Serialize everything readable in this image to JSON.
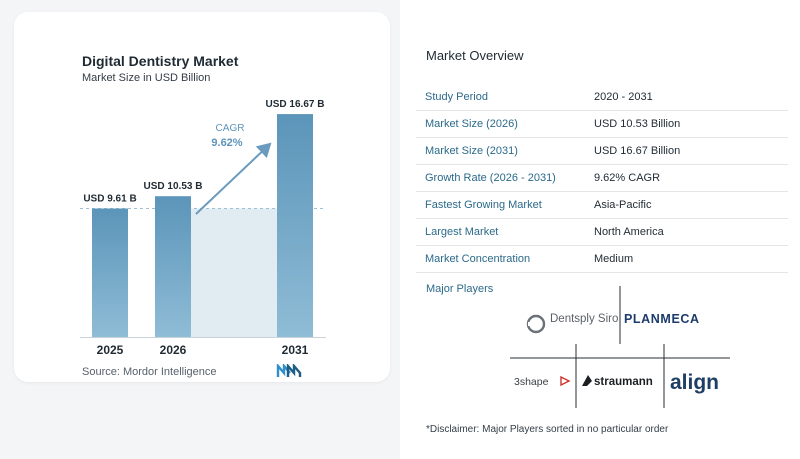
{
  "chart_data": {
    "type": "bar",
    "title": "Digital Dentistry Market",
    "subtitle": "Market Size in USD Billion",
    "categories": [
      "2025",
      "2026",
      "2031"
    ],
    "values": [
      9.61,
      10.53,
      16.67
    ],
    "data_labels": [
      "USD 9.61 B",
      "USD 10.53 B",
      "USD 16.67 B"
    ],
    "cagr_label": "CAGR",
    "cagr_value": "9.62%",
    "ylim": [
      0,
      17.5
    ],
    "colors": {
      "bar": "#5b95b9",
      "bar_light": "#8bb7d1",
      "shade": "#e1ebf2",
      "arrow": "#6a9bbf",
      "cagr": "#5d95bb"
    }
  },
  "source": "Source:  Mordor Intelligence",
  "overview": {
    "title": "Market Overview",
    "rows": [
      {
        "label": "Study Period",
        "value": "2020 - 2031"
      },
      {
        "label": "Market Size (2026)",
        "value": "USD 10.53 Billion"
      },
      {
        "label": "Market Size (2031)",
        "value": "USD 16.67 Billion"
      },
      {
        "label": "Growth Rate (2026 - 2031)",
        "value": "9.62% CAGR"
      },
      {
        "label": "Fastest Growing Market",
        "value": "Asia-Pacific"
      },
      {
        "label": "Largest Market",
        "value": "North America"
      },
      {
        "label": "Market Concentration",
        "value": "Medium"
      }
    ]
  },
  "players": {
    "title": "Major Players",
    "logos": [
      "Dentsply Sirona",
      "PLANMECA",
      "3shape",
      "straumann",
      "align"
    ]
  },
  "disclaimer": "*Disclaimer: Major Players sorted in no particular order",
  "colors": {
    "label_blue": "#2c6a8a",
    "brand_dark": "#1f2a33"
  }
}
